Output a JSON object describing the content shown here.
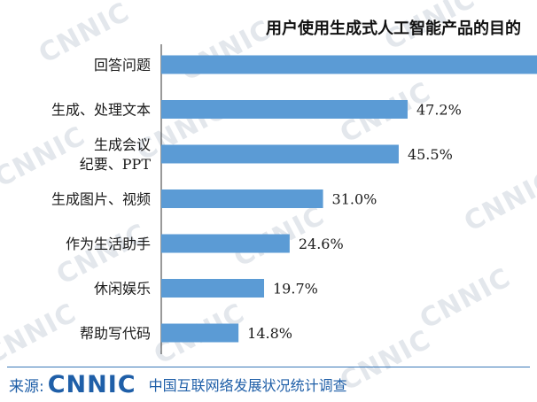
{
  "chart_data": {
    "type": "bar",
    "orientation": "horizontal",
    "title": "用户使用生成式人工智能产品的目的",
    "categories": [
      "回答问题",
      "生成、处理文本",
      "生成会议\n纪要、PPT",
      "生成图片、视频",
      "作为生活助手",
      "休闲娱乐",
      "帮助写代码"
    ],
    "values": [
      null,
      47.2,
      45.5,
      31.0,
      24.6,
      19.7,
      14.8
    ],
    "value_labels": [
      "",
      "47.2%",
      "45.5%",
      "31.0%",
      "24.6%",
      "19.7%",
      "14.8%"
    ],
    "xlim": [
      0,
      72
    ],
    "bar_color": "#5b9bd5",
    "grid": false,
    "legend": "none"
  },
  "watermark": "CNNIC",
  "footer": {
    "source_label": "来源:",
    "logo_text": "CNNIC",
    "organization": "中国互联网络发展状况统计调查"
  },
  "colors": {
    "brand": "#1f5fa8",
    "bar": "#5b9bd5"
  }
}
